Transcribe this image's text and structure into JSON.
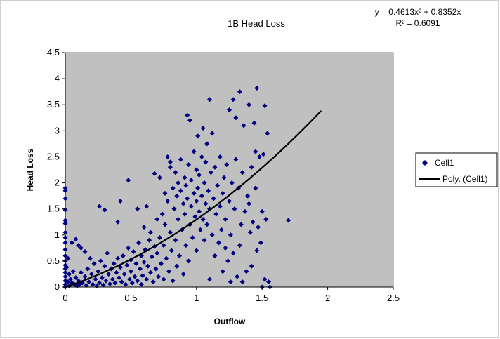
{
  "chart_data": {
    "type": "scatter",
    "title": "1B Head Loss",
    "xlabel": "Outflow",
    "ylabel": "Head Loss",
    "xlim": [
      0,
      2.5
    ],
    "ylim": [
      0,
      4.5
    ],
    "x_ticks": [
      "0",
      "0.5",
      "1",
      "1.5",
      "2",
      "2.5"
    ],
    "y_ticks": [
      "0",
      "0.5",
      "1",
      "1.5",
      "2",
      "2.5",
      "3",
      "3.5",
      "4",
      "4.5"
    ],
    "plot_background": "#c0c0c0",
    "marker_color": "#000080",
    "grid": false,
    "legend_position": "right",
    "legend": [
      {
        "label": "Cell1",
        "kind": "marker"
      },
      {
        "label": "Poly. (Cell1)",
        "kind": "line"
      }
    ],
    "trendline": {
      "type": "polynomial",
      "order": 2,
      "coefficients": {
        "a": 0.4613,
        "b": 0.8352,
        "c": 0
      },
      "x_range": [
        0,
        1.95
      ],
      "equation": "y = 0.4613x² + 0.8352x",
      "r_squared": "R² = 0.6091",
      "color": "#000000"
    },
    "series": [
      {
        "name": "Cell1",
        "points": [
          [
            0.0,
            1.9
          ],
          [
            0.0,
            1.85
          ],
          [
            0.0,
            1.7
          ],
          [
            0.0,
            1.48
          ],
          [
            0.0,
            1.28
          ],
          [
            0.0,
            1.22
          ],
          [
            0.0,
            1.05
          ],
          [
            0.0,
            0.95
          ],
          [
            0.0,
            0.85
          ],
          [
            0.0,
            0.72
          ],
          [
            0.0,
            0.6
          ],
          [
            0.0,
            0.5
          ],
          [
            0.0,
            0.42
          ],
          [
            0.0,
            0.35
          ],
          [
            0.0,
            0.28
          ],
          [
            0.0,
            0.2
          ],
          [
            0.0,
            0.12
          ],
          [
            0.0,
            0.05
          ],
          [
            0.0,
            0.0
          ],
          [
            0.01,
            0.38
          ],
          [
            0.02,
            0.55
          ],
          [
            0.02,
            0.1
          ],
          [
            0.03,
            0.25
          ],
          [
            0.03,
            0.02
          ],
          [
            0.04,
            0.15
          ],
          [
            0.05,
            0.85
          ],
          [
            0.05,
            0.08
          ],
          [
            0.06,
            0.3
          ],
          [
            0.07,
            0.05
          ],
          [
            0.08,
            0.92
          ],
          [
            0.08,
            0.18
          ],
          [
            0.09,
            0.02
          ],
          [
            0.1,
            0.8
          ],
          [
            0.1,
            0.12
          ],
          [
            0.11,
            0.05
          ],
          [
            0.12,
            0.75
          ],
          [
            0.12,
            0.28
          ],
          [
            0.13,
            0.08
          ],
          [
            0.15,
            0.68
          ],
          [
            0.15,
            0.2
          ],
          [
            0.16,
            0.03
          ],
          [
            0.17,
            0.35
          ],
          [
            0.18,
            0.1
          ],
          [
            0.19,
            0.55
          ],
          [
            0.2,
            0.25
          ],
          [
            0.21,
            0.05
          ],
          [
            0.22,
            0.45
          ],
          [
            0.23,
            0.15
          ],
          [
            0.24,
            0.02
          ],
          [
            0.25,
            0.3
          ],
          [
            0.26,
            1.55
          ],
          [
            0.26,
            0.08
          ],
          [
            0.27,
            0.5
          ],
          [
            0.28,
            0.18
          ],
          [
            0.29,
            0.04
          ],
          [
            0.3,
            0.4
          ],
          [
            0.3,
            1.48
          ],
          [
            0.31,
            0.12
          ],
          [
            0.32,
            0.65
          ],
          [
            0.33,
            0.25
          ],
          [
            0.34,
            0.06
          ],
          [
            0.35,
            0.35
          ],
          [
            0.36,
            0.15
          ],
          [
            0.37,
            0.45
          ],
          [
            0.38,
            0.08
          ],
          [
            0.39,
            0.28
          ],
          [
            0.4,
            0.55
          ],
          [
            0.4,
            1.25
          ],
          [
            0.41,
            0.18
          ],
          [
            0.42,
            1.65
          ],
          [
            0.42,
            0.38
          ],
          [
            0.43,
            0.1
          ],
          [
            0.44,
            0.6
          ],
          [
            0.45,
            0.25
          ],
          [
            0.46,
            0.05
          ],
          [
            0.47,
            0.42
          ],
          [
            0.48,
            0.75
          ],
          [
            0.48,
            2.05
          ],
          [
            0.49,
            0.15
          ],
          [
            0.5,
            0.52
          ],
          [
            0.5,
            0.3
          ],
          [
            0.51,
            0.08
          ],
          [
            0.52,
            0.68
          ],
          [
            0.53,
            0.2
          ],
          [
            0.54,
            0.45
          ],
          [
            0.55,
            1.5
          ],
          [
            0.55,
            0.12
          ],
          [
            0.56,
            0.85
          ],
          [
            0.57,
            0.35
          ],
          [
            0.58,
            0.6
          ],
          [
            0.58,
            0.05
          ],
          [
            0.59,
            0.22
          ],
          [
            0.6,
            0.48
          ],
          [
            0.6,
            1.15
          ],
          [
            0.61,
            0.72
          ],
          [
            0.62,
            0.15
          ],
          [
            0.62,
            1.55
          ],
          [
            0.63,
            0.4
          ],
          [
            0.64,
            0.9
          ],
          [
            0.65,
            0.28
          ],
          [
            0.65,
            1.05
          ],
          [
            0.66,
            0.58
          ],
          [
            0.67,
            0.1
          ],
          [
            0.68,
            0.78
          ],
          [
            0.68,
            2.18
          ],
          [
            0.69,
            0.35
          ],
          [
            0.7,
            1.3
          ],
          [
            0.7,
            0.65
          ],
          [
            0.71,
            0.2
          ],
          [
            0.72,
            0.95
          ],
          [
            0.72,
            2.1
          ],
          [
            0.73,
            0.45
          ],
          [
            0.74,
            1.4
          ],
          [
            0.75,
            0.15
          ],
          [
            0.75,
            0.8
          ],
          [
            0.76,
            1.8
          ],
          [
            0.76,
            1.2
          ],
          [
            0.77,
            0.55
          ],
          [
            0.78,
            2.5
          ],
          [
            0.78,
            1.65
          ],
          [
            0.79,
            0.3
          ],
          [
            0.8,
            2.4
          ],
          [
            0.8,
            1.05
          ],
          [
            0.8,
            2.3
          ],
          [
            0.81,
            0.7
          ],
          [
            0.82,
            1.9
          ],
          [
            0.82,
            0.12
          ],
          [
            0.83,
            1.5
          ],
          [
            0.84,
            2.2
          ],
          [
            0.84,
            0.9
          ],
          [
            0.85,
            1.75
          ],
          [
            0.85,
            0.4
          ],
          [
            0.86,
            2.0
          ],
          [
            0.86,
            1.3
          ],
          [
            0.87,
            0.6
          ],
          [
            0.88,
            1.85
          ],
          [
            0.88,
            2.45
          ],
          [
            0.89,
            1.1
          ],
          [
            0.9,
            1.6
          ],
          [
            0.9,
            0.25
          ],
          [
            0.91,
            2.1
          ],
          [
            0.91,
            1.4
          ],
          [
            0.92,
            0.8
          ],
          [
            0.92,
            1.95
          ],
          [
            0.93,
            3.3
          ],
          [
            0.93,
            1.7
          ],
          [
            0.94,
            2.35
          ],
          [
            0.94,
            0.5
          ],
          [
            0.95,
            3.2
          ],
          [
            0.95,
            1.2
          ],
          [
            0.96,
            1.55
          ],
          [
            0.96,
            2.05
          ],
          [
            0.97,
            0.95
          ],
          [
            0.98,
            1.8
          ],
          [
            0.98,
            2.6
          ],
          [
            0.99,
            1.35
          ],
          [
            1.0,
            2.25
          ],
          [
            1.0,
            1.65
          ],
          [
            1.0,
            0.7
          ],
          [
            1.01,
            2.9
          ],
          [
            1.01,
            1.9
          ],
          [
            1.02,
            1.45
          ],
          [
            1.02,
            2.15
          ],
          [
            1.03,
            1.1
          ],
          [
            1.04,
            1.75
          ],
          [
            1.04,
            2.5
          ],
          [
            1.05,
            3.05
          ],
          [
            1.05,
            1.3
          ],
          [
            1.06,
            2.0
          ],
          [
            1.06,
            0.9
          ],
          [
            1.07,
            1.6
          ],
          [
            1.07,
            2.4
          ],
          [
            1.08,
            1.2
          ],
          [
            1.08,
            2.75
          ],
          [
            1.09,
            1.85
          ],
          [
            1.1,
            3.6
          ],
          [
            1.1,
            1.5
          ],
          [
            1.1,
            0.15
          ],
          [
            1.11,
            2.2
          ],
          [
            1.12,
            1.0
          ],
          [
            1.12,
            2.95
          ],
          [
            1.13,
            1.7
          ],
          [
            1.14,
            2.3
          ],
          [
            1.14,
            0.6
          ],
          [
            1.15,
            1.4
          ],
          [
            1.16,
            1.95
          ],
          [
            1.17,
            0.85
          ],
          [
            1.18,
            1.55
          ],
          [
            1.18,
            2.5
          ],
          [
            1.19,
            1.1
          ],
          [
            1.2,
            1.8
          ],
          [
            1.2,
            0.3
          ],
          [
            1.21,
            2.1
          ],
          [
            1.22,
            0.75
          ],
          [
            1.22,
            1.3
          ],
          [
            1.23,
            2.35
          ],
          [
            1.24,
            0.5
          ],
          [
            1.25,
            1.65
          ],
          [
            1.25,
            3.4
          ],
          [
            1.26,
            1.0
          ],
          [
            1.26,
            0.1
          ],
          [
            1.27,
            2.0
          ],
          [
            1.28,
            0.65
          ],
          [
            1.28,
            3.6
          ],
          [
            1.29,
            1.5
          ],
          [
            1.3,
            3.25
          ],
          [
            1.3,
            2.45
          ],
          [
            1.31,
            0.2
          ],
          [
            1.32,
            1.9
          ],
          [
            1.33,
            3.75
          ],
          [
            1.33,
            0.8
          ],
          [
            1.34,
            1.2
          ],
          [
            1.35,
            0.1
          ],
          [
            1.35,
            2.2
          ],
          [
            1.36,
            3.1
          ],
          [
            1.37,
            1.45
          ],
          [
            1.38,
            0.3
          ],
          [
            1.39,
            1.75
          ],
          [
            1.4,
            1.6
          ],
          [
            1.4,
            3.5
          ],
          [
            1.41,
            1.05
          ],
          [
            1.42,
            2.3
          ],
          [
            1.42,
            0.4
          ],
          [
            1.43,
            1.25
          ],
          [
            1.44,
            3.15
          ],
          [
            1.45,
            2.6
          ],
          [
            1.45,
            1.9
          ],
          [
            1.46,
            3.82
          ],
          [
            1.46,
            0.7
          ],
          [
            1.47,
            1.15
          ],
          [
            1.48,
            2.5
          ],
          [
            1.49,
            0.85
          ],
          [
            1.5,
            1.45
          ],
          [
            1.5,
            0.0
          ],
          [
            1.51,
            2.55
          ],
          [
            1.52,
            3.48
          ],
          [
            1.52,
            0.15
          ],
          [
            1.53,
            1.3
          ],
          [
            1.54,
            2.95
          ],
          [
            1.55,
            0.1
          ],
          [
            1.56,
            0.0
          ],
          [
            1.7,
            1.28
          ]
        ]
      }
    ]
  }
}
